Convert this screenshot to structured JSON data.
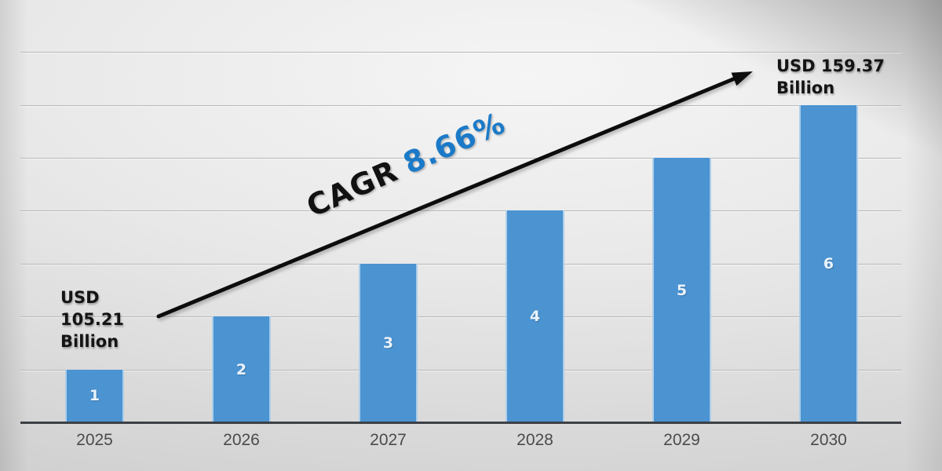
{
  "chart_data": {
    "type": "bar",
    "title": "",
    "xlabel": "",
    "ylabel": "",
    "categories": [
      "2025",
      "2026",
      "2027",
      "2028",
      "2029",
      "2030"
    ],
    "values": [
      1,
      2,
      3,
      4,
      5,
      6
    ],
    "bar_value_labels": [
      "1",
      "2",
      "3",
      "4",
      "5",
      "6"
    ],
    "ylim": [
      0,
      7
    ],
    "grid": true,
    "legend": false,
    "annotations": {
      "start_value": "USD 105.21 Billion",
      "end_value": "USD 159.37 Billion",
      "cagr_prefix": "CAGR",
      "cagr_value": "8.66%",
      "trend_arrow": "up-right"
    },
    "colors": {
      "bar": "#4B93D1",
      "bar_value_label": "#EAF3FB",
      "cagr_accent": "#1B7AC8",
      "cagr_text": "#111111",
      "annotation_text": "#141414",
      "axis_label": "#4B4B4B",
      "gridline": "#B9B9B9",
      "axis_line": "#3D4045",
      "arrow": "#0D0D0D"
    }
  }
}
